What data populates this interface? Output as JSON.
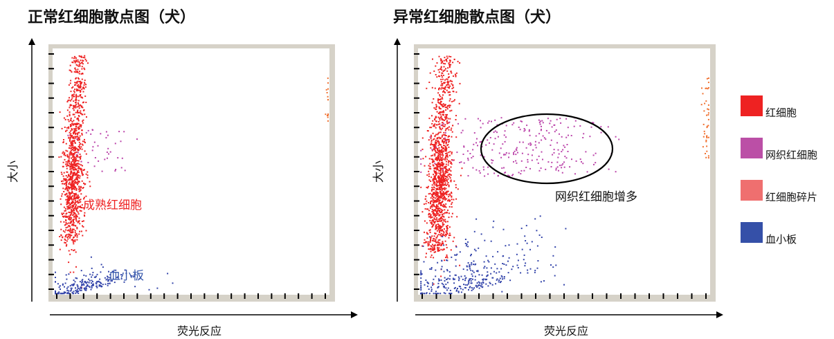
{
  "chart_data": [
    {
      "type": "scatter",
      "title": "正常红细胞散点图（犬）",
      "xlabel": "荧光反应",
      "ylabel": "大小",
      "grid": false,
      "series": [
        {
          "name": "红细胞",
          "color": "#ee2222",
          "cluster": {
            "x_center": 0.07,
            "x_spread": 0.035,
            "y_range": [
              0.22,
              0.97
            ],
            "count": 1100
          }
        },
        {
          "name": "网织红细胞",
          "color": "#bb44aa",
          "cluster": {
            "x_center": 0.17,
            "x_spread": 0.06,
            "y_range": [
              0.5,
              0.68
            ],
            "count": 40
          }
        },
        {
          "name": "红细胞碎片",
          "color": "#f07030",
          "cluster": {
            "x_center": 0.995,
            "x_spread": 0.004,
            "y_range": [
              0.7,
              0.88
            ],
            "count": 14
          }
        },
        {
          "name": "血小板",
          "color": "#3344aa",
          "cluster": {
            "x_center": 0.11,
            "x_spread": 0.08,
            "y_range": [
              0.01,
              0.12
            ],
            "count": 220
          }
        }
      ],
      "annotations": [
        {
          "text": "成熟红细胞",
          "color": "#ee2222"
        },
        {
          "text": "血小板",
          "color": "#3355aa"
        }
      ]
    },
    {
      "type": "scatter",
      "title": "异常红细胞散点图（犬）",
      "xlabel": "荧光反应",
      "ylabel": "大小",
      "grid": false,
      "series": [
        {
          "name": "红细胞",
          "color": "#ee2222",
          "cluster": {
            "x_center": 0.07,
            "x_spread": 0.04,
            "y_range": [
              0.15,
              0.97
            ],
            "count": 1300
          }
        },
        {
          "name": "网织红细胞",
          "color": "#bb44aa",
          "cluster": {
            "x_center": 0.35,
            "x_spread": 0.15,
            "y_range": [
              0.48,
              0.72
            ],
            "count": 260
          }
        },
        {
          "name": "红细胞碎片",
          "color": "#f07030",
          "cluster": {
            "x_center": 0.99,
            "x_spread": 0.01,
            "y_range": [
              0.55,
              0.88
            ],
            "count": 40
          }
        },
        {
          "name": "血小板",
          "color": "#3344aa",
          "cluster": {
            "x_center": 0.16,
            "x_spread": 0.12,
            "y_range": [
              0.01,
              0.25
            ],
            "count": 330
          }
        }
      ],
      "annotations": [
        {
          "text": "网织红细胞增多",
          "color": "#111111"
        }
      ]
    }
  ],
  "legend": [
    {
      "label": "红细胞",
      "color": "#ee2222"
    },
    {
      "label": "网织红细胞",
      "color": "#bb4fa6"
    },
    {
      "label": "红细胞碎片",
      "color": "#ef6f6f"
    },
    {
      "label": "血小板",
      "color": "#3550a8"
    }
  ]
}
